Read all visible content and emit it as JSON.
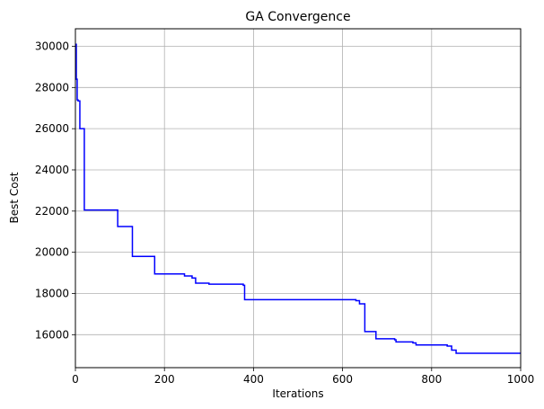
{
  "chart_data": {
    "type": "line",
    "title": "GA Convergence",
    "xlabel": "Iterations",
    "ylabel": "Best Cost",
    "xlim": [
      0,
      1000
    ],
    "ylim": [
      14400,
      30850
    ],
    "xticks": [
      0,
      200,
      400,
      600,
      800,
      1000
    ],
    "xtick_labels": [
      "0",
      "200",
      "400",
      "600",
      "800",
      "1000"
    ],
    "yticks": [
      16000,
      18000,
      20000,
      22000,
      24000,
      26000,
      28000,
      30000
    ],
    "ytick_labels": [
      "16000",
      "18000",
      "20000",
      "22000",
      "24000",
      "26000",
      "28000",
      "30000"
    ],
    "grid": true,
    "series": [
      {
        "color": "#0000ff",
        "step": "post",
        "x": [
          0,
          2,
          4,
          6,
          10,
          20,
          95,
          128,
          178,
          245,
          262,
          270,
          300,
          377,
          380,
          630,
          638,
          650,
          652,
          675,
          700,
          717,
          720,
          740,
          758,
          765,
          835,
          845,
          855,
          1000
        ],
        "y": [
          30100,
          28400,
          27400,
          27350,
          26000,
          22050,
          21250,
          19800,
          18950,
          18850,
          18750,
          18500,
          18450,
          18400,
          17700,
          17650,
          17500,
          16150,
          16150,
          15800,
          15800,
          15750,
          15650,
          15650,
          15600,
          15500,
          15450,
          15250,
          15100,
          15100
        ]
      }
    ]
  }
}
